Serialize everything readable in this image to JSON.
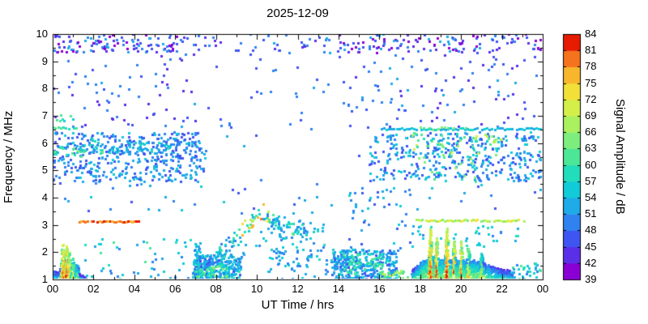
{
  "title": "2025-12-09",
  "axes": {
    "x": {
      "label": "UT Time / hrs",
      "range": [
        0,
        24
      ],
      "minor_step": 1,
      "ticks": [
        {
          "v": 0,
          "t": "00"
        },
        {
          "v": 2,
          "t": "02"
        },
        {
          "v": 4,
          "t": "04"
        },
        {
          "v": 6,
          "t": "06"
        },
        {
          "v": 8,
          "t": "08"
        },
        {
          "v": 10,
          "t": "10"
        },
        {
          "v": 12,
          "t": "12"
        },
        {
          "v": 14,
          "t": "14"
        },
        {
          "v": 16,
          "t": "16"
        },
        {
          "v": 18,
          "t": "18"
        },
        {
          "v": 20,
          "t": "20"
        },
        {
          "v": 22,
          "t": "22"
        },
        {
          "v": 24,
          "t": "00"
        }
      ]
    },
    "y": {
      "label": "Frequency / MHz",
      "range": [
        1,
        10
      ],
      "minor_step": 0.5,
      "ticks": [
        {
          "v": 1,
          "t": "1"
        },
        {
          "v": 2,
          "t": "2"
        },
        {
          "v": 3,
          "t": "3"
        },
        {
          "v": 4,
          "t": "4"
        },
        {
          "v": 5,
          "t": "5"
        },
        {
          "v": 6,
          "t": "6"
        },
        {
          "v": 7,
          "t": "7"
        },
        {
          "v": 8,
          "t": "8"
        },
        {
          "v": 9,
          "t": "9"
        },
        {
          "v": 10,
          "t": "10"
        }
      ]
    }
  },
  "colorbar": {
    "label": "Signal Amplitude / dB",
    "range": [
      39,
      84
    ],
    "ticks": [
      39,
      42,
      45,
      48,
      51,
      54,
      57,
      60,
      63,
      66,
      69,
      72,
      75,
      78,
      81,
      84
    ],
    "segment_colors": [
      "#8a00d4",
      "#5b2fe8",
      "#3f55f2",
      "#2f82f0",
      "#1faae8",
      "#12cbd8",
      "#22ddbb",
      "#4ce697",
      "#7dee7d",
      "#aaf05f",
      "#d4ef4a",
      "#f2e038",
      "#f7b62b",
      "#f4731c",
      "#e61b00"
    ]
  },
  "chart_data": {
    "type": "scatter",
    "title": "2025-12-09",
    "xlabel": "UT Time / hrs",
    "ylabel": "Frequency / MHz",
    "color_label": "Signal Amplitude / dB",
    "xlim": [
      0,
      24
    ],
    "ylim": [
      1,
      10
    ],
    "clim": [
      39,
      84
    ],
    "marker_px": 3,
    "seed": 20251209,
    "clusters": [
      {
        "kind": "scatter",
        "name": "top-band-early",
        "t": [
          0,
          6.5
        ],
        "f": [
          9.3,
          10.0
        ],
        "n": 115,
        "amp": [
          39,
          53
        ]
      },
      {
        "kind": "scatter",
        "name": "top-band-midday",
        "t": [
          6.5,
          14
        ],
        "f": [
          9.25,
          10.0
        ],
        "n": 45,
        "amp": [
          41,
          53
        ]
      },
      {
        "kind": "scatter",
        "name": "top-band-late",
        "t": [
          14,
          24
        ],
        "f": [
          9.3,
          10.0
        ],
        "n": 125,
        "amp": [
          39,
          53
        ]
      },
      {
        "kind": "scatter",
        "name": "upper-sparse-morning",
        "t": [
          0,
          7
        ],
        "f": [
          6.6,
          9.25
        ],
        "n": 70,
        "amp": [
          42,
          52
        ]
      },
      {
        "kind": "scatter",
        "name": "upper-sparse-evening",
        "t": [
          14.5,
          24
        ],
        "f": [
          6.6,
          9.25
        ],
        "n": 95,
        "amp": [
          42,
          52
        ]
      },
      {
        "kind": "scatter",
        "name": "upper-sparse-midday",
        "t": [
          7,
          14.5
        ],
        "f": [
          6.7,
          9.2
        ],
        "n": 12,
        "amp": [
          45,
          51
        ]
      },
      {
        "kind": "scatter",
        "name": "mid-dense-morning",
        "t": [
          0,
          7.5
        ],
        "f": [
          4.6,
          6.4
        ],
        "n": 430,
        "amp": [
          45,
          55
        ]
      },
      {
        "kind": "scatter",
        "name": "mid-line-morning",
        "t": [
          0,
          7.2
        ],
        "f": [
          5.65,
          6.05
        ],
        "n": 90,
        "amp": [
          48,
          58
        ]
      },
      {
        "kind": "scatter",
        "name": "mid-green-morning",
        "t": [
          0,
          2.5
        ],
        "f": [
          5.5,
          6.2
        ],
        "n": 22,
        "amp": [
          57,
          64
        ]
      },
      {
        "kind": "scatter",
        "name": "mid-dense-evening",
        "t": [
          15.5,
          24
        ],
        "f": [
          4.6,
          6.4
        ],
        "n": 390,
        "amp": [
          45,
          56
        ]
      },
      {
        "kind": "scatter",
        "name": "mid-warm-evening",
        "t": [
          17.5,
          22
        ],
        "f": [
          5.4,
          6.4
        ],
        "n": 55,
        "amp": [
          57,
          72
        ]
      },
      {
        "kind": "scatter",
        "name": "mid-warm-evening-low",
        "t": [
          18,
          21
        ],
        "f": [
          4.6,
          5.4
        ],
        "n": 12,
        "amp": [
          57,
          70
        ]
      },
      {
        "kind": "hline",
        "name": "fixed-line-6.5-evening",
        "t": [
          16,
          24
        ],
        "f": 6.52,
        "step": 0.12,
        "jitter": 0.04,
        "amp": [
          51,
          57
        ]
      },
      {
        "kind": "hline",
        "name": "fixed-line-6.5-evening-green",
        "t": [
          18,
          20.6
        ],
        "f": 6.55,
        "step": 0.15,
        "jitter": 0.05,
        "amp": [
          57,
          66
        ]
      },
      {
        "kind": "hline",
        "name": "fixed-line-6.55-morning",
        "t": [
          0,
          1.3
        ],
        "f": 6.55,
        "step": 0.13,
        "jitter": 0.04,
        "amp": [
          54,
          63
        ]
      },
      {
        "kind": "scatter",
        "name": "dots-7mhz-morning",
        "t": [
          0,
          1.1
        ],
        "f": [
          6.8,
          7.05
        ],
        "n": 8,
        "amp": [
          54,
          63
        ]
      },
      {
        "kind": "hline",
        "name": "red-line-3.1-morning",
        "t": [
          1.3,
          4.3
        ],
        "f": 3.13,
        "step": 0.1,
        "jitter": 0.02,
        "amp": [
          77,
          83
        ]
      },
      {
        "kind": "hline",
        "name": "orange-line-3.15-evening",
        "t": [
          17.8,
          23.2
        ],
        "f": 3.17,
        "step": 0.1,
        "jitter": 0.03,
        "amp": [
          64,
          73
        ]
      },
      {
        "kind": "burst",
        "name": "midnight-burst",
        "t": [
          0,
          1.65
        ],
        "dt": 0.045,
        "density": 16,
        "ampSlope": 24,
        "ampFall": 14,
        "baseProfile": [
          [
            0,
            1.3
          ],
          [
            1.0,
            1.25
          ],
          [
            1.65,
            1.1
          ]
        ],
        "spikes": [
          [
            0.5,
            2.3,
            0.09
          ],
          [
            0.68,
            2.35,
            0.07
          ],
          [
            0.82,
            2.1,
            0.06
          ],
          [
            1.0,
            1.85,
            0.07
          ],
          [
            1.2,
            1.6,
            0.08
          ]
        ]
      },
      {
        "kind": "ridge",
        "name": "sunrise-ascent",
        "n": 235,
        "spread": 0.16,
        "fillBelowProb": 0.35,
        "amp": [
          49,
          62
        ],
        "hot": {
          "t": [
            9.2,
            10.6
          ],
          "prob": 0.45,
          "amp": [
            66,
            80
          ]
        },
        "path": [
          [
            6.85,
            1.25
          ],
          [
            7.4,
            1.55
          ],
          [
            8.0,
            1.9
          ],
          [
            8.6,
            2.25
          ],
          [
            9.1,
            2.6
          ],
          [
            9.6,
            3.0
          ],
          [
            10.0,
            3.35
          ],
          [
            10.35,
            3.45
          ],
          [
            10.7,
            3.1
          ],
          [
            11.2,
            2.95
          ],
          [
            12.0,
            2.9
          ],
          [
            12.6,
            2.8
          ]
        ]
      },
      {
        "kind": "scatter",
        "name": "sunrise-onset-column",
        "t": [
          6.95,
          7.25
        ],
        "f": [
          1.0,
          2.4
        ],
        "n": 40,
        "amp": [
          49,
          58
        ]
      },
      {
        "kind": "scatter",
        "name": "sunrise-low-dense",
        "t": [
          6.9,
          9.2
        ],
        "f": [
          1.0,
          1.9
        ],
        "n": 265,
        "amp": [
          47,
          58
        ]
      },
      {
        "kind": "scatter",
        "name": "sunrise-low-green",
        "t": [
          7.0,
          8.6
        ],
        "f": [
          1.0,
          1.5
        ],
        "n": 40,
        "amp": [
          57,
          66
        ]
      },
      {
        "kind": "scatter",
        "name": "midday-low-sparse",
        "t": [
          10.5,
          13.5
        ],
        "f": [
          1.0,
          2.2
        ],
        "n": 45,
        "amp": [
          48,
          58
        ]
      },
      {
        "kind": "scatter",
        "name": "midday-mid-sparse",
        "t": [
          10.6,
          13.3
        ],
        "f": [
          2.2,
          3.2
        ],
        "n": 22,
        "amp": [
          48,
          60
        ]
      },
      {
        "kind": "scatter",
        "name": "afternoon-blob",
        "t": [
          13.6,
          16.9
        ],
        "f": [
          1.0,
          2.1
        ],
        "n": 330,
        "amp": [
          47,
          57
        ]
      },
      {
        "kind": "scatter",
        "name": "afternoon-blob-green",
        "t": [
          14.2,
          16.2
        ],
        "f": [
          1.2,
          2.0
        ],
        "n": 45,
        "amp": [
          57,
          63
        ]
      },
      {
        "kind": "scatter",
        "name": "afternoon-warm-low",
        "t": [
          16.0,
          17.4
        ],
        "f": [
          1.0,
          1.35
        ],
        "n": 30,
        "amp": [
          60,
          70
        ]
      },
      {
        "kind": "burst",
        "name": "evening-burst",
        "t": [
          17.6,
          22.6
        ],
        "dt": 0.04,
        "density": 14,
        "ampSlope": 20,
        "ampFall": 16,
        "baseProfile": [
          [
            17.6,
            1.35
          ],
          [
            18.2,
            1.75
          ],
          [
            20.8,
            1.7
          ],
          [
            21.6,
            1.45
          ],
          [
            22.6,
            1.3
          ]
        ],
        "spikes": [
          [
            18.5,
            2.9,
            0.08
          ],
          [
            18.8,
            2.65,
            0.07
          ],
          [
            19.3,
            2.95,
            0.08
          ],
          [
            19.65,
            2.6,
            0.06
          ],
          [
            20.0,
            2.5,
            0.07
          ],
          [
            20.35,
            2.25,
            0.07
          ],
          [
            21.0,
            2.0,
            0.1
          ]
        ]
      },
      {
        "kind": "scatter",
        "name": "evening-burst-halo",
        "t": [
          17.6,
          22.8
        ],
        "f": [
          2.2,
          3.0
        ],
        "n": 40,
        "amp": [
          50,
          60
        ]
      },
      {
        "kind": "scatter",
        "name": "late-night-low",
        "t": [
          22.4,
          23.9
        ],
        "f": [
          1.0,
          1.6
        ],
        "n": 35,
        "amp": [
          50,
          63
        ]
      },
      {
        "kind": "scatter",
        "name": "band-3.5-4.5-sparse",
        "t": [
          0,
          24
        ],
        "f": [
          3.4,
          4.55
        ],
        "n": 55,
        "amp": [
          45,
          55
        ]
      },
      {
        "kind": "scatter",
        "name": "early-morning-low-sparse",
        "t": [
          1.5,
          6.8
        ],
        "f": [
          1.0,
          2.6
        ],
        "n": 50,
        "amp": [
          48,
          62
        ]
      },
      {
        "kind": "scatter",
        "name": "midday-high-sparse",
        "t": [
          8,
          16
        ],
        "f": [
          4.6,
          9.2
        ],
        "n": 28,
        "amp": [
          45,
          52
        ]
      },
      {
        "kind": "scatter",
        "name": "afternoon-2-4.5-sparse",
        "t": [
          14.5,
          17.6
        ],
        "f": [
          2.1,
          4.5
        ],
        "n": 35,
        "amp": [
          46,
          56
        ]
      }
    ]
  }
}
